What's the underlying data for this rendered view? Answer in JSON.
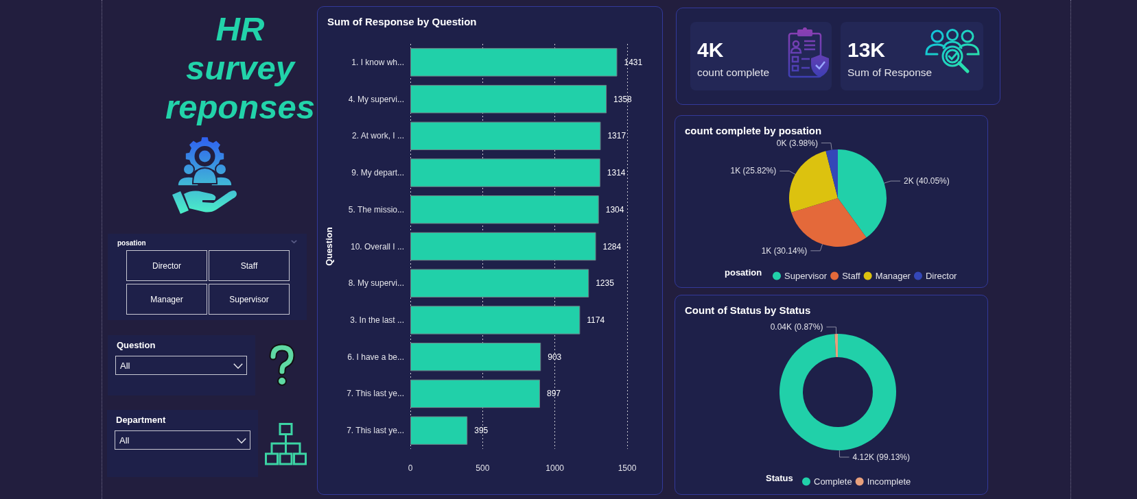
{
  "chart_data": [
    {
      "type": "other",
      "title": "HR survey reponses"
    },
    {
      "type": "other",
      "title": "posation",
      "annotations": [
        "Director",
        "Staff",
        "Manager",
        "Supervisor"
      ]
    },
    {
      "type": "other",
      "title": "Question",
      "annotations": [
        "All"
      ]
    },
    {
      "type": "other",
      "title": "Department",
      "annotations": [
        "All"
      ]
    },
    {
      "type": "bar",
      "title": "Sum of Response by Question",
      "ylabel": "Question",
      "orientation": "horizontal",
      "categories": [
        "1. I know wh...",
        "4. My supervi...",
        "2. At work, I ...",
        "9. My depart...",
        "5. The missio...",
        "10. Overall I ...",
        "8. My supervi...",
        "3. In the last ...",
        "6. I have a be...",
        "7. This last ye...",
        "7. This last ye..."
      ],
      "values": [
        1431,
        1358,
        1317,
        1314,
        1304,
        1284,
        1235,
        1174,
        903,
        897,
        395
      ],
      "color": "#21d0a9",
      "xlim": [
        0,
        1500
      ],
      "xticks": [
        0,
        500,
        1000,
        1500
      ],
      "grid": "x",
      "data_labels": true
    },
    {
      "type": "other",
      "title": "count complete",
      "annotations": [
        "4K"
      ]
    },
    {
      "type": "other",
      "title": "Sum of Response",
      "annotations": [
        "13K"
      ]
    },
    {
      "type": "pie",
      "title": "count complete by posation",
      "categories": [
        "Supervisor",
        "Staff",
        "Manager",
        "Director"
      ],
      "values": [
        40.05,
        30.14,
        25.82,
        3.98
      ],
      "colors": [
        "#21d0a9",
        "#e4693a",
        "#dcc20f",
        "#3447b8"
      ],
      "value_labels": [
        "2K (40.05%)",
        "1K (30.14%)",
        "1K (25.82%)",
        "0K (3.98%)"
      ],
      "legend": "bottom",
      "legend_title": "posation"
    },
    {
      "type": "donut",
      "title": "Count of Status by Status",
      "categories": [
        "Complete",
        "Incomplete"
      ],
      "values": [
        99.13,
        0.87
      ],
      "colors": [
        "#21d0a9",
        "#e8a07c"
      ],
      "value_labels": [
        "4.12K (99.13%)",
        "0.04K (0.87%)"
      ],
      "legend": "bottom",
      "legend_title": "Status"
    }
  ]
}
